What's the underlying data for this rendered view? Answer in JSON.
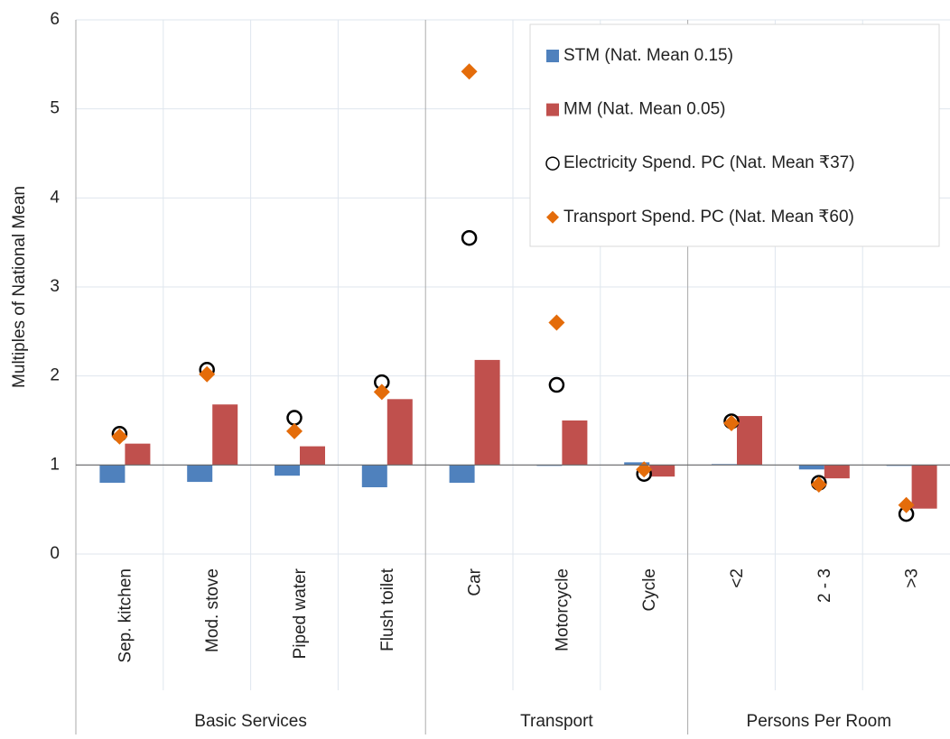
{
  "chart_data": {
    "type": "bar",
    "y_label": "Multiples of National Mean",
    "ylim": [
      0,
      6
    ],
    "yticks": [
      0,
      1,
      2,
      3,
      4,
      5,
      6
    ],
    "baseline": 1,
    "grid": true,
    "legend": "upper right",
    "groups": [
      {
        "label": "Basic Services",
        "categories": [
          "Sep. kitchen",
          "Mod. stove",
          "Piped water",
          "Flush toilet"
        ]
      },
      {
        "label": "Transport",
        "categories": [
          "Car",
          "Motorcycle",
          "Cycle"
        ]
      },
      {
        "label": "Persons Per Room",
        "categories": [
          "<2",
          "2 - 3",
          ">3"
        ]
      }
    ],
    "series": [
      {
        "name": "STM (Nat. Mean 0.15)",
        "mark": "bar",
        "color": "#4f81bd",
        "values": [
          0.8,
          0.81,
          0.88,
          0.75,
          0.8,
          0.99,
          1.03,
          1.01,
          0.95,
          0.99
        ]
      },
      {
        "name": "MM (Nat. Mean 0.05)",
        "mark": "bar",
        "color": "#c0504d",
        "values": [
          1.24,
          1.68,
          1.21,
          1.74,
          2.18,
          1.5,
          0.87,
          1.55,
          0.85,
          0.51
        ]
      },
      {
        "name": "Electricity Spend. PC (Nat. Mean ₹37)",
        "mark": "circle",
        "color": "#000000",
        "values": [
          1.35,
          2.07,
          1.53,
          1.93,
          3.55,
          1.9,
          0.9,
          1.49,
          0.8,
          0.45
        ]
      },
      {
        "name": "Transport Spend. PC (Nat. Mean ₹60)",
        "mark": "diamond",
        "color": "#e46c0a",
        "values": [
          1.32,
          2.02,
          1.38,
          1.82,
          5.42,
          2.6,
          0.95,
          1.47,
          0.78,
          0.55
        ]
      }
    ]
  }
}
